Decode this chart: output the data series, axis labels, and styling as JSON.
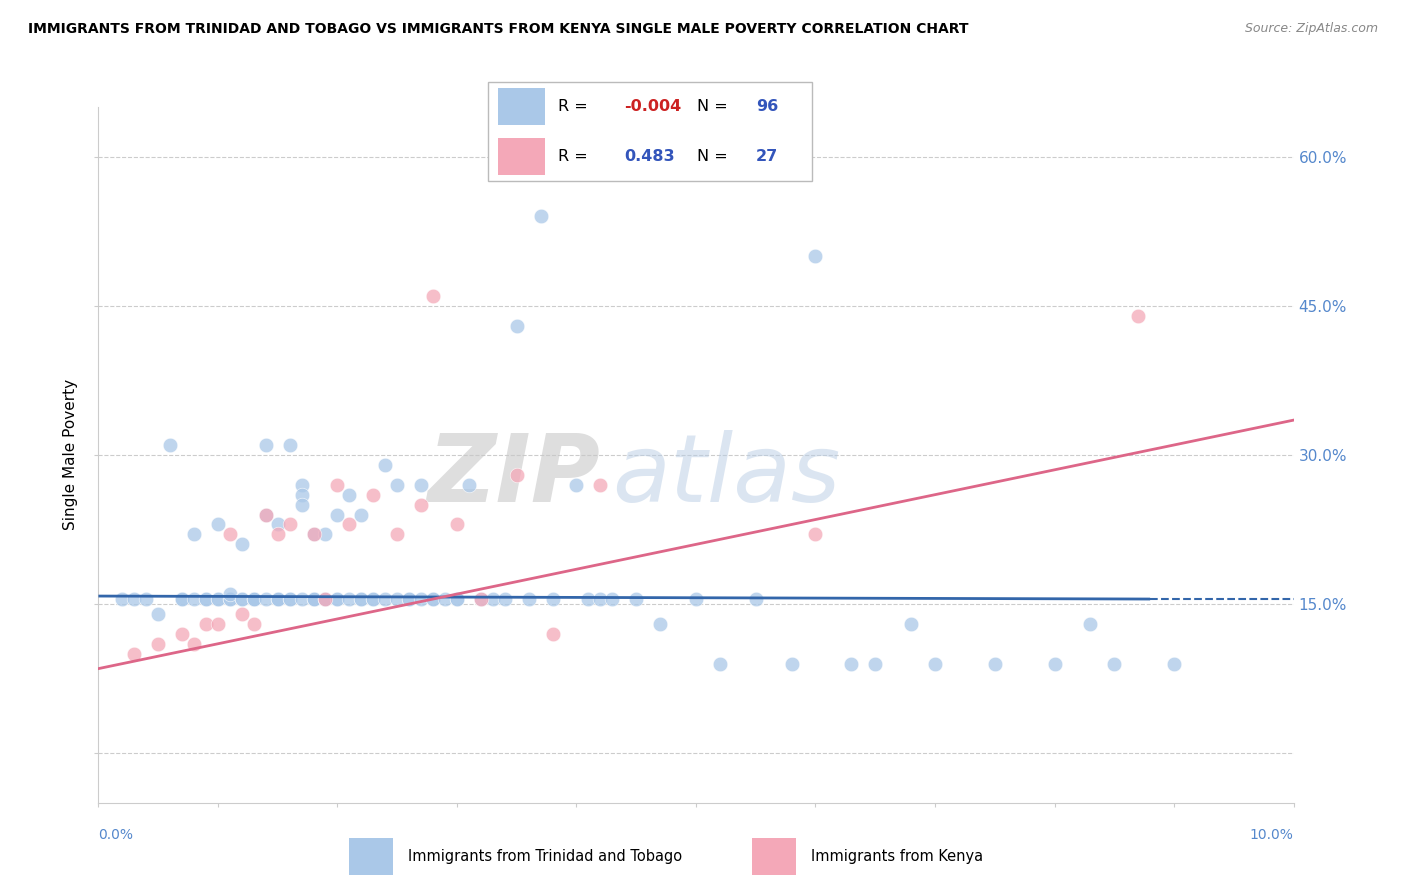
{
  "title": "IMMIGRANTS FROM TRINIDAD AND TOBAGO VS IMMIGRANTS FROM KENYA SINGLE MALE POVERTY CORRELATION CHART",
  "source": "Source: ZipAtlas.com",
  "ylabel": "Single Male Poverty",
  "y_ticks": [
    0.0,
    0.15,
    0.3,
    0.45,
    0.6
  ],
  "y_tick_labels": [
    "",
    "15.0%",
    "30.0%",
    "45.0%",
    "60.0%"
  ],
  "xmin": 0.0,
  "xmax": 0.1,
  "ymin": -0.05,
  "ymax": 0.65,
  "r_blue": -0.004,
  "n_blue": 96,
  "r_pink": 0.483,
  "n_pink": 27,
  "legend_label_blue": "Immigrants from Trinidad and Tobago",
  "legend_label_pink": "Immigrants from Kenya",
  "blue_color": "#aac8e8",
  "pink_color": "#f4a8b8",
  "line_blue": "#3366aa",
  "line_pink": "#dd6688",
  "blue_line_y0": 0.158,
  "blue_line_y1": 0.155,
  "pink_line_y0": 0.085,
  "pink_line_y1": 0.335,
  "blue_scatter_x": [
    0.002,
    0.003,
    0.004,
    0.005,
    0.006,
    0.007,
    0.007,
    0.008,
    0.008,
    0.009,
    0.009,
    0.01,
    0.01,
    0.01,
    0.011,
    0.011,
    0.011,
    0.012,
    0.012,
    0.012,
    0.013,
    0.013,
    0.013,
    0.013,
    0.014,
    0.014,
    0.014,
    0.015,
    0.015,
    0.015,
    0.015,
    0.016,
    0.016,
    0.016,
    0.017,
    0.017,
    0.017,
    0.017,
    0.018,
    0.018,
    0.018,
    0.018,
    0.019,
    0.019,
    0.019,
    0.02,
    0.02,
    0.02,
    0.021,
    0.021,
    0.022,
    0.022,
    0.022,
    0.023,
    0.023,
    0.024,
    0.024,
    0.025,
    0.025,
    0.026,
    0.026,
    0.027,
    0.027,
    0.028,
    0.028,
    0.029,
    0.03,
    0.03,
    0.031,
    0.032,
    0.033,
    0.034,
    0.035,
    0.036,
    0.037,
    0.038,
    0.04,
    0.041,
    0.042,
    0.043,
    0.045,
    0.047,
    0.05,
    0.052,
    0.055,
    0.058,
    0.06,
    0.063,
    0.065,
    0.068,
    0.07,
    0.075,
    0.08,
    0.083,
    0.085,
    0.09
  ],
  "blue_scatter_y": [
    0.155,
    0.155,
    0.155,
    0.14,
    0.31,
    0.155,
    0.155,
    0.155,
    0.22,
    0.155,
    0.155,
    0.155,
    0.155,
    0.23,
    0.155,
    0.155,
    0.16,
    0.155,
    0.155,
    0.21,
    0.155,
    0.155,
    0.155,
    0.155,
    0.24,
    0.155,
    0.31,
    0.155,
    0.155,
    0.23,
    0.155,
    0.155,
    0.31,
    0.155,
    0.27,
    0.26,
    0.155,
    0.25,
    0.155,
    0.155,
    0.22,
    0.155,
    0.155,
    0.22,
    0.155,
    0.155,
    0.155,
    0.24,
    0.26,
    0.155,
    0.155,
    0.24,
    0.155,
    0.155,
    0.155,
    0.29,
    0.155,
    0.27,
    0.155,
    0.155,
    0.155,
    0.155,
    0.27,
    0.155,
    0.155,
    0.155,
    0.155,
    0.155,
    0.27,
    0.155,
    0.155,
    0.155,
    0.43,
    0.155,
    0.54,
    0.155,
    0.27,
    0.155,
    0.155,
    0.155,
    0.155,
    0.13,
    0.155,
    0.09,
    0.155,
    0.09,
    0.5,
    0.09,
    0.09,
    0.13,
    0.09,
    0.09,
    0.09,
    0.13,
    0.09,
    0.09
  ],
  "pink_scatter_x": [
    0.003,
    0.005,
    0.007,
    0.008,
    0.009,
    0.01,
    0.011,
    0.012,
    0.013,
    0.014,
    0.015,
    0.016,
    0.018,
    0.019,
    0.02,
    0.021,
    0.023,
    0.025,
    0.027,
    0.028,
    0.03,
    0.032,
    0.035,
    0.038,
    0.042,
    0.06,
    0.087
  ],
  "pink_scatter_y": [
    0.1,
    0.11,
    0.12,
    0.11,
    0.13,
    0.13,
    0.22,
    0.14,
    0.13,
    0.24,
    0.22,
    0.23,
    0.22,
    0.155,
    0.27,
    0.23,
    0.26,
    0.22,
    0.25,
    0.46,
    0.23,
    0.155,
    0.28,
    0.12,
    0.27,
    0.22,
    0.44
  ]
}
